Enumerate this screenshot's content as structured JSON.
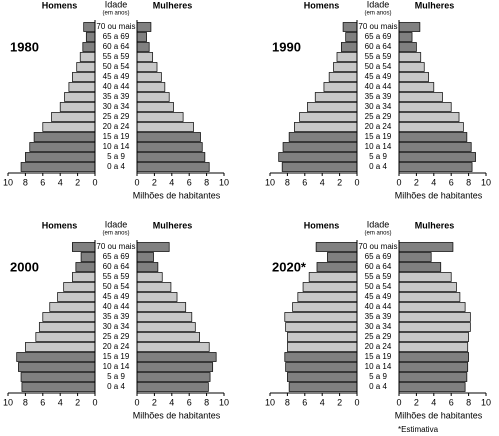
{
  "chart_data": [
    {
      "type": "pyramid",
      "title": "1980",
      "age_label": "Idade",
      "age_sublabel": "(em anos)",
      "xlabel": "Milhões de habitantes",
      "categories": [
        "0 a 4",
        "5 a 9",
        "10 a 14",
        "15 a 19",
        "20 a 24",
        "25 a 29",
        "30 a 34",
        "35 a 39",
        "40 a 44",
        "45 a 49",
        "50 a 54",
        "55 a 59",
        "60 a 64",
        "65 a 69",
        "70 ou mais"
      ],
      "colors": [
        "#808080",
        "#808080",
        "#808080",
        "#808080",
        "#c8c8c8",
        "#c8c8c8",
        "#c8c8c8",
        "#c8c8c8",
        "#c8c8c8",
        "#c8c8c8",
        "#c8c8c8",
        "#c8c8c8",
        "#808080",
        "#808080",
        "#808080"
      ],
      "series": [
        {
          "name": "Homens",
          "values": [
            8.5,
            8.0,
            7.5,
            7.0,
            6.0,
            5.0,
            4.0,
            3.5,
            3.0,
            2.6,
            2.1,
            1.7,
            1.4,
            1.0,
            1.3
          ]
        },
        {
          "name": "Mulheres",
          "values": [
            8.3,
            7.8,
            7.5,
            7.3,
            6.5,
            5.3,
            4.2,
            3.7,
            3.2,
            2.8,
            2.3,
            1.8,
            1.4,
            1.1,
            1.6
          ]
        }
      ],
      "xlim": [
        0,
        10
      ],
      "xticks": [
        0,
        2,
        4,
        6,
        8,
        10
      ]
    },
    {
      "type": "pyramid",
      "title": "1990",
      "age_label": "Idade",
      "age_sublabel": "(em anos)",
      "xlabel": "Milhões de habitantes",
      "categories": [
        "0 a 4",
        "5 a 9",
        "10 a 14",
        "15 a 19",
        "20 a 24",
        "25 a 29",
        "30 a 34",
        "35 a 39",
        "40 a 44",
        "45 a 49",
        "50 a 54",
        "55 a 59",
        "60 a 64",
        "65 a 69",
        "70 ou mais"
      ],
      "colors": [
        "#808080",
        "#808080",
        "#808080",
        "#808080",
        "#c8c8c8",
        "#c8c8c8",
        "#c8c8c8",
        "#c8c8c8",
        "#c8c8c8",
        "#c8c8c8",
        "#c8c8c8",
        "#c8c8c8",
        "#808080",
        "#808080",
        "#808080"
      ],
      "series": [
        {
          "name": "Homens",
          "values": [
            8.6,
            9.0,
            8.5,
            7.8,
            7.2,
            6.6,
            5.7,
            4.8,
            3.8,
            3.2,
            2.7,
            2.3,
            1.8,
            1.3,
            1.6
          ]
        },
        {
          "name": "Mulheres",
          "values": [
            8.4,
            8.8,
            8.3,
            7.8,
            7.4,
            6.9,
            6.0,
            5.0,
            4.0,
            3.4,
            2.9,
            2.5,
            2.0,
            1.5,
            2.4
          ]
        }
      ],
      "xlim": [
        0,
        10
      ],
      "xticks": [
        0,
        2,
        4,
        6,
        8,
        10
      ]
    },
    {
      "type": "pyramid",
      "title": "2000",
      "age_label": "Idade",
      "age_sublabel": "(em anos)",
      "xlabel": "Milhões de habitantes",
      "categories": [
        "0 a 4",
        "5 a 9",
        "10 a 14",
        "15 a 19",
        "20 a 24",
        "25 a 29",
        "30 a 34",
        "35 a 39",
        "40 a 44",
        "45 a 49",
        "50 a 54",
        "55 a 59",
        "60 a 64",
        "65 a 69",
        "70 ou mais"
      ],
      "colors": [
        "#808080",
        "#808080",
        "#808080",
        "#808080",
        "#c8c8c8",
        "#c8c8c8",
        "#c8c8c8",
        "#c8c8c8",
        "#c8c8c8",
        "#c8c8c8",
        "#c8c8c8",
        "#c8c8c8",
        "#808080",
        "#808080",
        "#808080"
      ],
      "series": [
        {
          "name": "Homens",
          "values": [
            8.4,
            8.5,
            8.8,
            9.0,
            8.0,
            6.8,
            6.4,
            6.0,
            5.2,
            4.3,
            3.6,
            2.6,
            2.2,
            1.6,
            2.6
          ]
        },
        {
          "name": "Mulheres",
          "values": [
            8.2,
            8.4,
            8.7,
            9.1,
            8.3,
            7.2,
            6.7,
            6.3,
            5.6,
            4.6,
            3.9,
            2.9,
            2.4,
            1.9,
            3.7
          ]
        }
      ],
      "xlim": [
        0,
        10
      ],
      "xticks": [
        0,
        2,
        4,
        6,
        8,
        10
      ]
    },
    {
      "type": "pyramid",
      "title": "2020*",
      "age_label": "Idade",
      "age_sublabel": "(em anos)",
      "xlabel": "Milhões de habitantes",
      "categories": [
        "0 a 4",
        "5 a 9",
        "10 a 14",
        "15 a 19",
        "20 a 24",
        "25 a 29",
        "30 a 34",
        "35 a 39",
        "40 a 44",
        "45 a 49",
        "50 a 54",
        "55 a 59",
        "60 a 64",
        "65 a 69",
        "70 ou mais"
      ],
      "colors": [
        "#808080",
        "#808080",
        "#808080",
        "#808080",
        "#c8c8c8",
        "#c8c8c8",
        "#c8c8c8",
        "#c8c8c8",
        "#c8c8c8",
        "#c8c8c8",
        "#c8c8c8",
        "#c8c8c8",
        "#808080",
        "#808080",
        "#808080"
      ],
      "series": [
        {
          "name": "Homens",
          "values": [
            7.8,
            8.0,
            8.2,
            8.3,
            8.0,
            8.0,
            8.2,
            8.3,
            7.4,
            6.8,
            6.2,
            5.5,
            4.6,
            3.4,
            4.7
          ]
        },
        {
          "name": "Mulheres",
          "values": [
            7.6,
            7.8,
            7.9,
            8.0,
            7.9,
            8.0,
            8.2,
            8.2,
            7.6,
            7.0,
            6.6,
            6.0,
            4.8,
            3.7,
            6.2
          ]
        }
      ],
      "xlim": [
        0,
        10
      ],
      "xticks": [
        0,
        2,
        4,
        6,
        8,
        10
      ]
    }
  ],
  "footnote": "*Estimativa"
}
